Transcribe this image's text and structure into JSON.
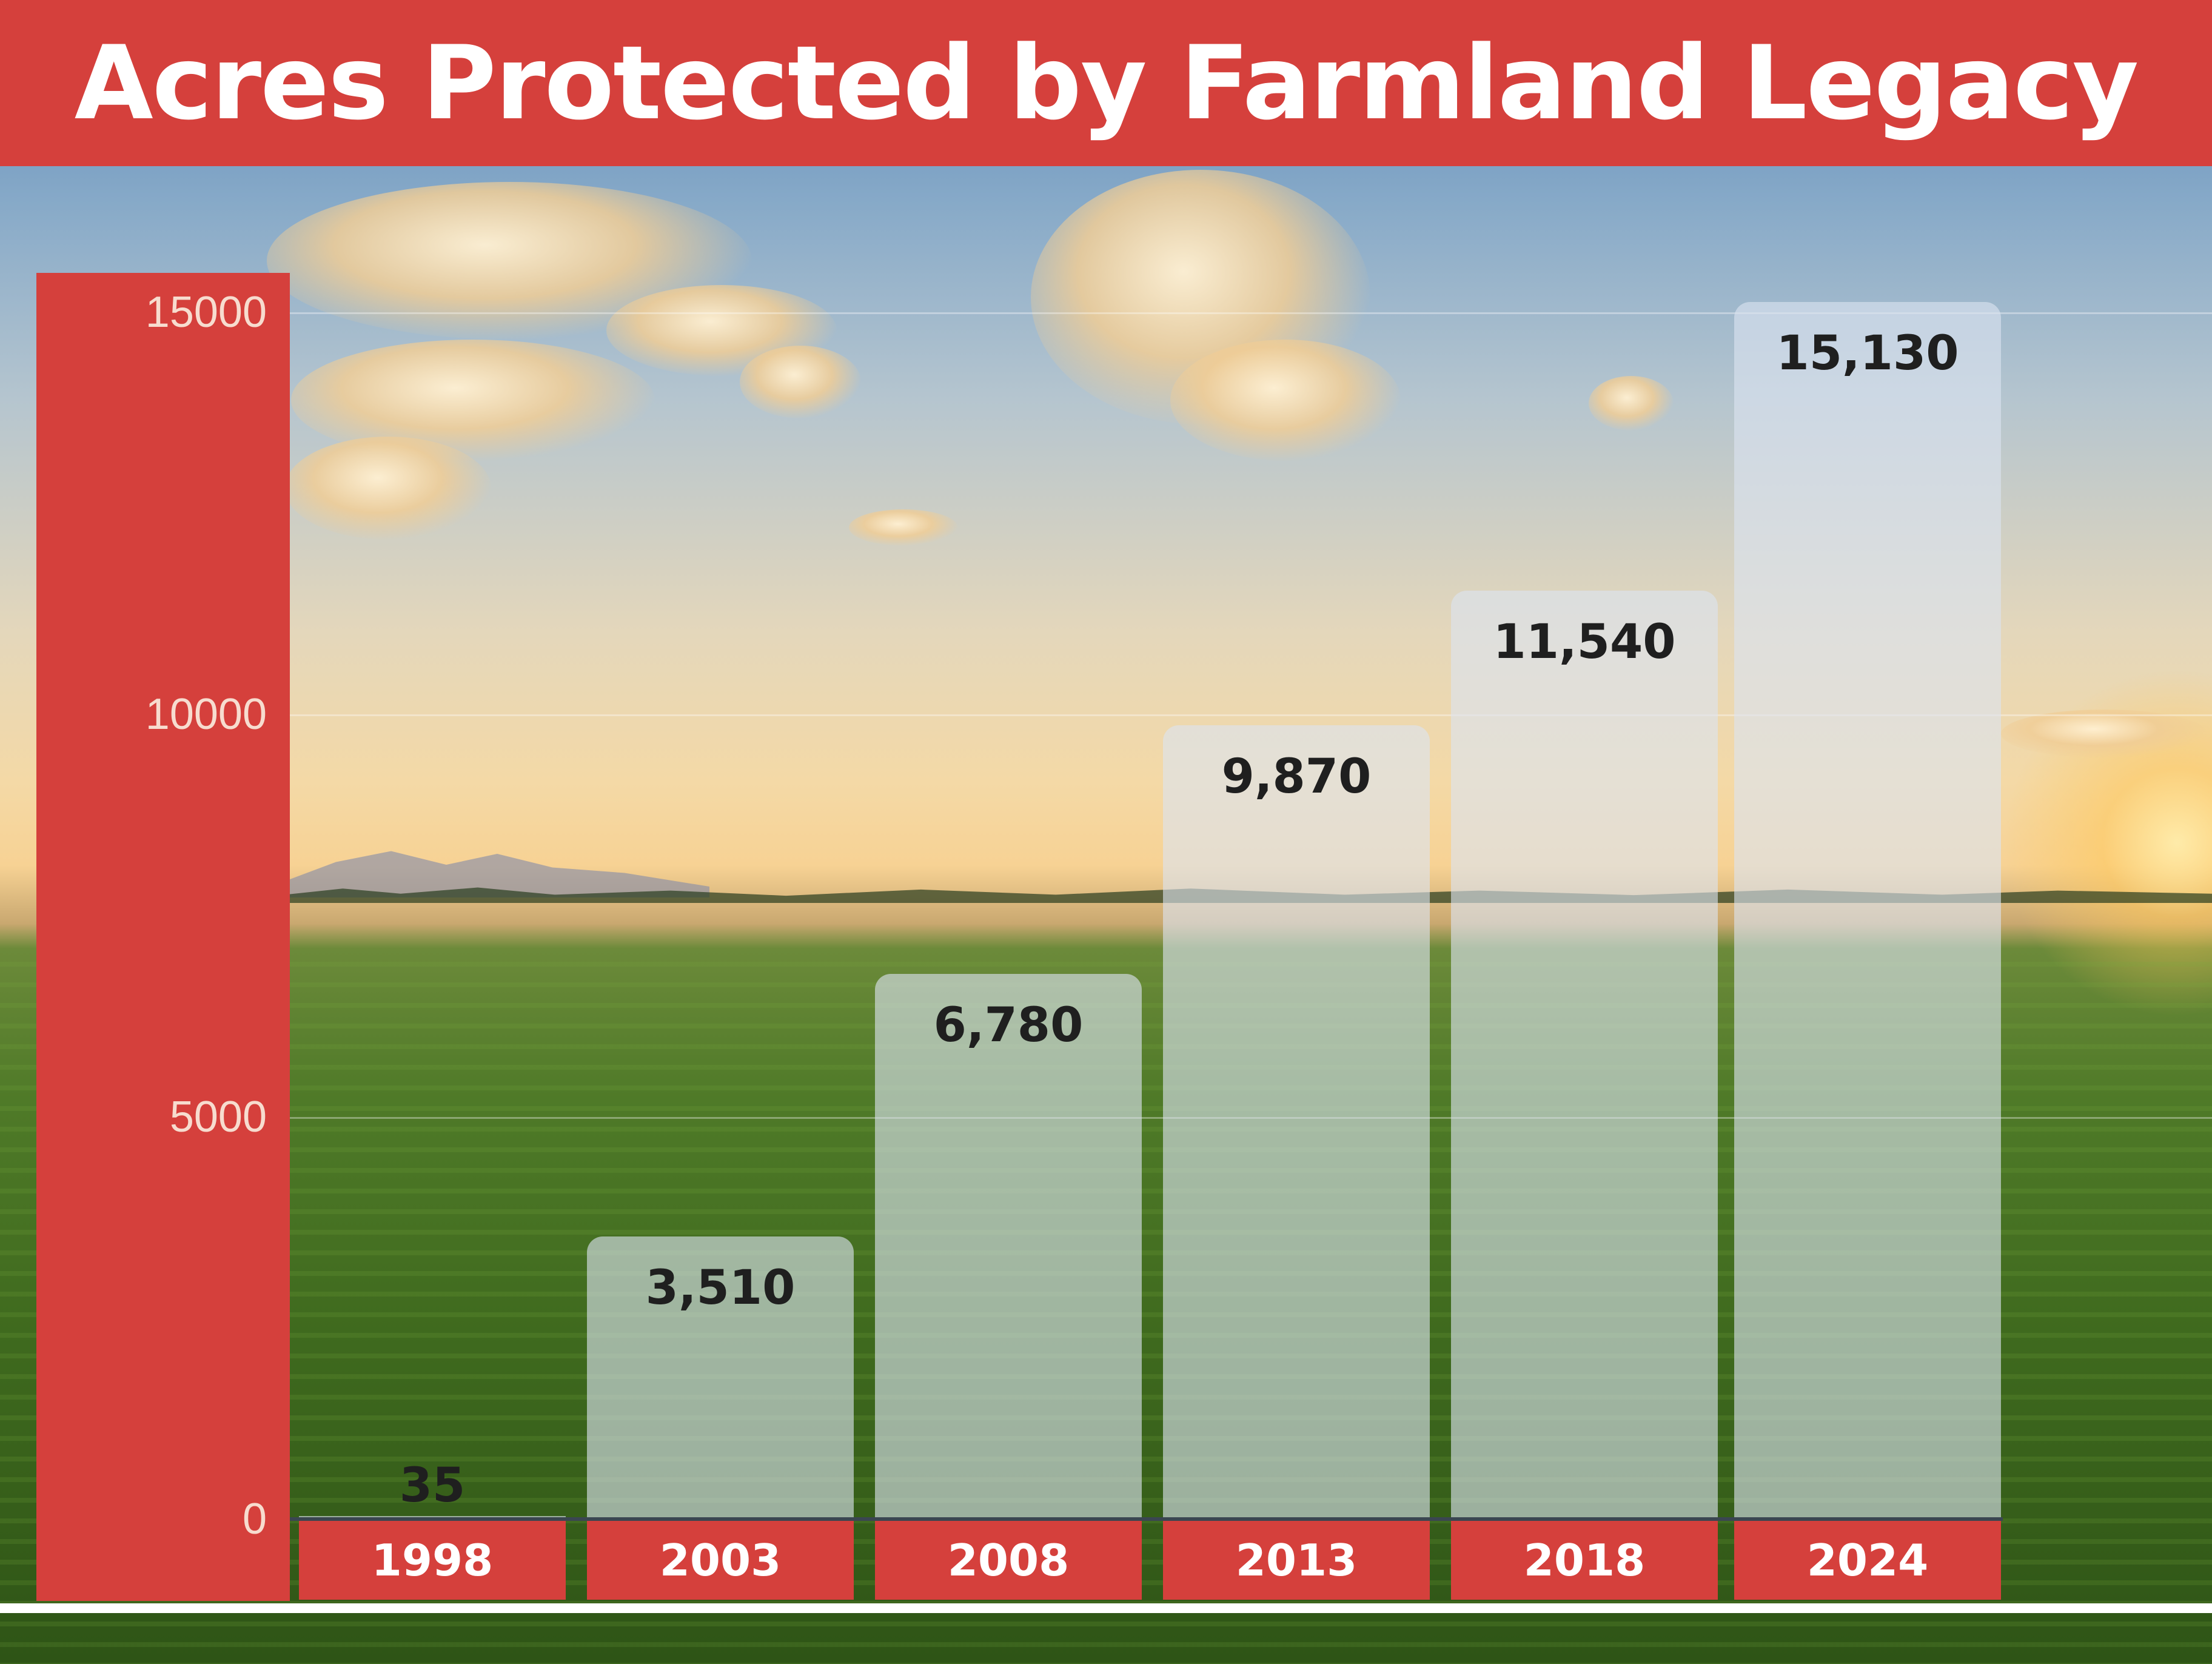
{
  "chart_data": {
    "type": "bar",
    "title": "Acres Protected by Farmland Legacy",
    "categories": [
      "1998",
      "2003",
      "2008",
      "2013",
      "2018",
      "2024"
    ],
    "values": [
      35,
      3510,
      6780,
      9870,
      11540,
      15130
    ],
    "value_labels": [
      "35",
      "3,510",
      "6,780",
      "9,870",
      "11,540",
      "15,130"
    ],
    "yticks": [
      "0",
      "5000",
      "10000",
      "15000"
    ],
    "ylim": [
      0,
      15130
    ],
    "xlabel": "",
    "ylabel": "",
    "grid": true,
    "legend": "none",
    "colors": {
      "accent": "#d5403c",
      "bar": "#dce4f0",
      "label": "#1f1f1f"
    }
  }
}
